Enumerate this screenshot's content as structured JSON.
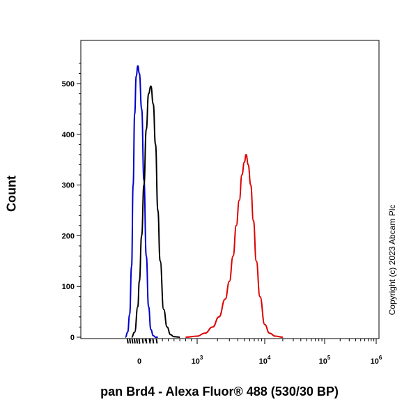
{
  "chart_data": {
    "type": "line",
    "xlabel": "pan Brd4 - Alexa Fluor® 488 (530/30 BP)",
    "ylabel": "Count",
    "ylim": [
      0,
      540
    ],
    "x_scale": "biexponential",
    "grid": false,
    "y_ticks": [
      {
        "value": 0,
        "label": "0"
      },
      {
        "value": 100,
        "label": "100"
      },
      {
        "value": 200,
        "label": "200"
      },
      {
        "value": 300,
        "label": "300"
      },
      {
        "value": 400,
        "label": "400"
      },
      {
        "value": 500,
        "label": "500"
      }
    ],
    "x_ticks": [
      {
        "value": 0,
        "base": "0",
        "exp": ""
      },
      {
        "value": 1000,
        "base": "10",
        "exp": "3"
      },
      {
        "value": 10000,
        "base": "10",
        "exp": "4"
      },
      {
        "value": 100000,
        "base": "10",
        "exp": "5"
      },
      {
        "value": 1000000,
        "base": "10",
        "exp": "6"
      }
    ],
    "series": [
      {
        "color": "#0000cc",
        "x": [
          -360,
          -300,
          -250,
          -200,
          -160,
          -120,
          -80,
          -40,
          0,
          40,
          80,
          120,
          160,
          200,
          240,
          280,
          320
        ],
        "y": [
          0,
          10,
          45,
          140,
          300,
          440,
          515,
          535,
          520,
          450,
          310,
          160,
          60,
          15,
          3,
          0,
          0
        ]
      },
      {
        "color": "#000000",
        "x": [
          -200,
          -120,
          -40,
          0,
          40,
          80,
          120,
          160,
          200,
          240,
          280,
          320,
          360,
          420,
          480,
          540,
          600,
          700
        ],
        "y": [
          0,
          10,
          60,
          110,
          200,
          300,
          410,
          480,
          495,
          460,
          380,
          250,
          150,
          55,
          20,
          5,
          1,
          0
        ]
      },
      {
        "color": "#dd0000",
        "x": [
          800,
          1000,
          1300,
          1700,
          2100,
          2600,
          3000,
          3400,
          3800,
          4200,
          4600,
          5000,
          5300,
          5700,
          6200,
          6800,
          7500,
          8500,
          10000,
          12000,
          15000,
          20000
        ],
        "y": [
          0,
          2,
          8,
          20,
          40,
          75,
          110,
          160,
          220,
          270,
          320,
          345,
          360,
          340,
          300,
          230,
          150,
          80,
          25,
          8,
          2,
          0
        ]
      }
    ]
  },
  "texts": {
    "ylabel": "Count",
    "xlabel": "pan Brd4 - Alexa Fluor® 488 (530/30 BP)",
    "copyright": "Copyright (c) 2023 Abcam Plc"
  }
}
